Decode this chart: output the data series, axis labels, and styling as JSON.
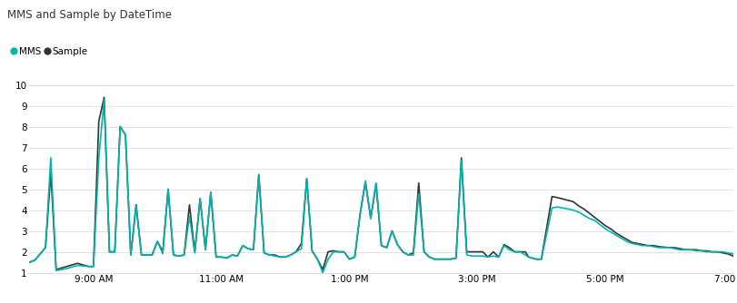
{
  "title": "MMS and Sample by DateTime",
  "legend_labels": [
    "MMS",
    "Sample"
  ],
  "mms_color": "#00B5AD",
  "sample_color": "#333333",
  "background_color": "#ffffff",
  "grid_color": "#dddddd",
  "ylim": [
    1,
    10
  ],
  "yticks": [
    1,
    2,
    3,
    4,
    5,
    6,
    7,
    8,
    9,
    10
  ],
  "xlim_minutes": [
    0,
    660
  ],
  "xtick_minutes": [
    60,
    180,
    300,
    420,
    540,
    660
  ],
  "xtick_labels": [
    "9:00 AM",
    "11:00 AM",
    "1:00 PM",
    "3:00 PM",
    "5:00 PM",
    "7:00 PM"
  ],
  "line_width": 1.2,
  "mms_times": [
    0,
    5,
    15,
    20,
    25,
    35,
    45,
    55,
    60,
    65,
    70,
    75,
    80,
    85,
    90,
    95,
    100,
    105,
    110,
    115,
    120,
    125,
    130,
    135,
    140,
    145,
    150,
    155,
    160,
    165,
    170,
    175,
    180,
    185,
    190,
    195,
    200,
    205,
    210,
    215,
    220,
    225,
    230,
    235,
    240,
    245,
    250,
    255,
    260,
    265,
    270,
    275,
    280,
    285,
    290,
    295,
    300,
    305,
    310,
    315,
    320,
    325,
    330,
    335,
    340,
    345,
    350,
    355,
    360,
    365,
    370,
    375,
    380,
    385,
    390,
    395,
    400,
    405,
    410,
    415,
    420,
    425,
    430,
    435,
    440,
    445,
    450,
    455,
    460,
    465,
    468,
    475,
    480,
    490,
    495,
    510,
    515,
    520,
    525,
    530,
    535,
    540,
    545,
    550,
    555,
    560,
    565,
    570,
    575,
    580,
    585,
    590,
    600,
    605,
    610,
    615,
    620,
    625,
    630,
    635,
    640,
    645,
    650,
    655,
    660
  ],
  "mms_values": [
    1.5,
    1.6,
    2.2,
    6.5,
    1.1,
    1.2,
    1.35,
    1.3,
    1.3,
    6.5,
    9.3,
    2.0,
    2.0,
    8.0,
    7.6,
    1.85,
    4.2,
    1.85,
    1.85,
    1.85,
    2.5,
    1.9,
    5.0,
    1.85,
    1.8,
    1.85,
    3.7,
    1.95,
    4.55,
    2.1,
    4.85,
    1.75,
    1.75,
    1.7,
    1.85,
    1.8,
    2.3,
    2.15,
    2.1,
    5.7,
    1.95,
    1.85,
    1.8,
    1.75,
    1.75,
    1.85,
    2.0,
    2.15,
    5.5,
    2.05,
    1.65,
    1.0,
    1.65,
    2.0,
    2.0,
    2.0,
    1.65,
    1.75,
    3.8,
    5.4,
    3.6,
    5.3,
    2.3,
    2.2,
    3.0,
    2.35,
    2.0,
    1.85,
    1.85,
    4.8,
    2.0,
    1.75,
    1.65,
    1.65,
    1.65,
    1.65,
    1.7,
    6.4,
    1.85,
    1.8,
    1.8,
    1.8,
    1.75,
    1.8,
    1.75,
    2.3,
    2.1,
    2.0,
    2.0,
    1.85,
    1.75,
    1.65,
    1.65,
    4.1,
    4.15,
    4.0,
    3.9,
    3.75,
    3.6,
    3.5,
    3.3,
    3.1,
    2.95,
    2.8,
    2.65,
    2.5,
    2.4,
    2.35,
    2.3,
    2.3,
    2.25,
    2.2,
    2.2,
    2.15,
    2.1,
    2.1,
    2.1,
    2.05,
    2.05,
    2.0,
    2.0,
    2.0,
    2.0,
    1.95,
    1.9
  ],
  "sample_times": [
    0,
    5,
    15,
    20,
    25,
    35,
    45,
    55,
    60,
    65,
    70,
    75,
    80,
    85,
    90,
    95,
    100,
    105,
    110,
    115,
    120,
    125,
    130,
    135,
    140,
    145,
    150,
    155,
    160,
    165,
    170,
    175,
    180,
    185,
    190,
    195,
    200,
    205,
    210,
    215,
    220,
    225,
    230,
    235,
    240,
    245,
    250,
    255,
    260,
    265,
    270,
    275,
    280,
    285,
    290,
    295,
    300,
    305,
    310,
    315,
    320,
    325,
    330,
    335,
    340,
    345,
    350,
    355,
    360,
    365,
    370,
    375,
    380,
    385,
    390,
    395,
    400,
    405,
    410,
    415,
    420,
    425,
    430,
    435,
    440,
    445,
    450,
    455,
    460,
    465,
    468,
    475,
    480,
    490,
    495,
    510,
    515,
    520,
    525,
    530,
    535,
    540,
    545,
    550,
    555,
    560,
    565,
    570,
    575,
    580,
    585,
    590,
    600,
    605,
    610,
    615,
    620,
    625,
    630,
    635,
    640,
    645,
    650,
    655,
    660
  ],
  "sample_values": [
    1.5,
    1.6,
    2.2,
    5.8,
    1.15,
    1.3,
    1.45,
    1.3,
    1.3,
    8.25,
    9.4,
    2.0,
    2.0,
    8.0,
    7.6,
    1.85,
    4.25,
    1.85,
    1.85,
    1.85,
    2.5,
    2.0,
    5.0,
    1.85,
    1.8,
    1.85,
    4.25,
    2.0,
    4.55,
    2.1,
    4.85,
    1.75,
    1.75,
    1.7,
    1.85,
    1.8,
    2.3,
    2.15,
    2.1,
    5.7,
    1.95,
    1.85,
    1.85,
    1.75,
    1.75,
    1.85,
    2.0,
    2.4,
    5.5,
    2.05,
    1.65,
    1.15,
    2.0,
    2.05,
    2.0,
    2.0,
    1.65,
    1.75,
    3.8,
    5.35,
    3.6,
    5.25,
    2.3,
    2.2,
    3.0,
    2.35,
    2.0,
    1.85,
    1.95,
    5.3,
    2.0,
    1.75,
    1.65,
    1.65,
    1.65,
    1.65,
    1.7,
    6.5,
    2.0,
    2.0,
    2.0,
    2.0,
    1.75,
    2.0,
    1.75,
    2.35,
    2.2,
    2.0,
    2.0,
    2.0,
    1.75,
    1.65,
    1.65,
    4.65,
    4.6,
    4.4,
    4.2,
    4.05,
    3.85,
    3.65,
    3.45,
    3.25,
    3.1,
    2.9,
    2.75,
    2.6,
    2.45,
    2.4,
    2.35,
    2.3,
    2.3,
    2.25,
    2.2,
    2.2,
    2.15,
    2.1,
    2.1,
    2.1,
    2.05,
    2.05,
    2.0,
    2.0,
    1.95,
    1.9,
    1.8
  ]
}
